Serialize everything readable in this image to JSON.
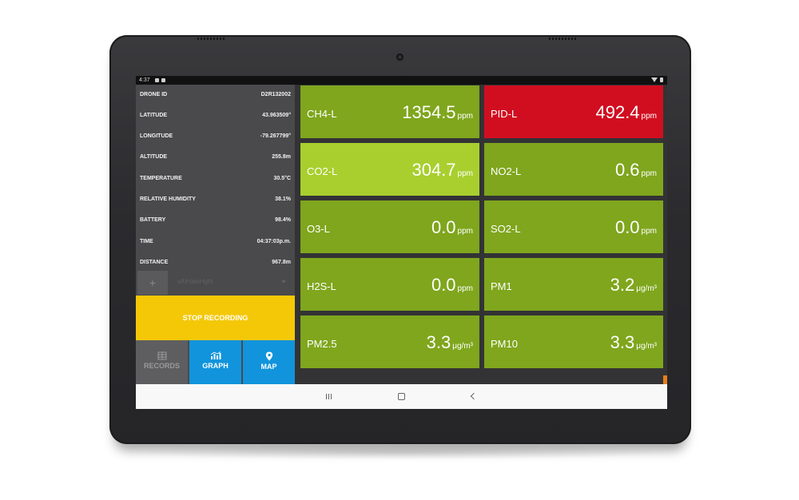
{
  "status_bar": {
    "time": "4:37"
  },
  "info_panel": [
    {
      "label": "DRONE ID",
      "value": "D2R132002"
    },
    {
      "label": "LATITUDE",
      "value": "43.963509°"
    },
    {
      "label": "LONGITUDE",
      "value": "-79.267799°"
    },
    {
      "label": "ALTITUDE",
      "value": "255.8m"
    },
    {
      "label": "TEMPERATURE",
      "value": "30.5°C"
    },
    {
      "label": "RELATIVE HUMIDITY",
      "value": "38.1%"
    },
    {
      "label": "BATTERY",
      "value": "98.4%"
    },
    {
      "label": "TIME",
      "value": "04:37:03p.m."
    },
    {
      "label": "DISTANCE",
      "value": "967.8m"
    }
  ],
  "add_button": {
    "label": "+"
  },
  "dropdown": {
    "value": "sAtHawHgth"
  },
  "stop_recording": {
    "label": "STOP RECORDING"
  },
  "bottom_nav": {
    "records": {
      "label": "RECORDS",
      "icon": "records-icon"
    },
    "graph": {
      "label": "GRAPH",
      "icon": "graph-icon"
    },
    "map": {
      "label": "MAP",
      "icon": "map-pin-icon"
    }
  },
  "sensors": [
    {
      "name": "CH4-L",
      "value": "1354.5",
      "unit": "ppm",
      "color": "#7fa61d"
    },
    {
      "name": "PID-L",
      "value": "492.4",
      "unit": "ppm",
      "color": "#d10e20"
    },
    {
      "name": "CO2-L",
      "value": "304.7",
      "unit": "ppm",
      "color": "#a8cf2e"
    },
    {
      "name": "NO2-L",
      "value": "0.6",
      "unit": "ppm",
      "color": "#7fa61d"
    },
    {
      "name": "O3-L",
      "value": "0.0",
      "unit": "ppm",
      "color": "#7fa61d"
    },
    {
      "name": "SO2-L",
      "value": "0.0",
      "unit": "ppm",
      "color": "#7fa61d"
    },
    {
      "name": "H2S-L",
      "value": "0.0",
      "unit": "ppm",
      "color": "#7fa61d"
    },
    {
      "name": "PM1",
      "value": "3.2",
      "unit": "μg/m³",
      "color": "#7fa61d"
    },
    {
      "name": "PM2.5",
      "value": "3.3",
      "unit": "μg/m³",
      "color": "#7fa61d"
    },
    {
      "name": "PM10",
      "value": "3.3",
      "unit": "μg/m³",
      "color": "#7fa61d"
    }
  ],
  "colors": {
    "panel_bg": "#4a4a4c",
    "stop_button": "#f4c807",
    "nav_active": "#1194db",
    "sensor_normal": "#7fa61d",
    "sensor_alarm": "#d10e20",
    "sensor_highlight": "#a8cf2e"
  }
}
